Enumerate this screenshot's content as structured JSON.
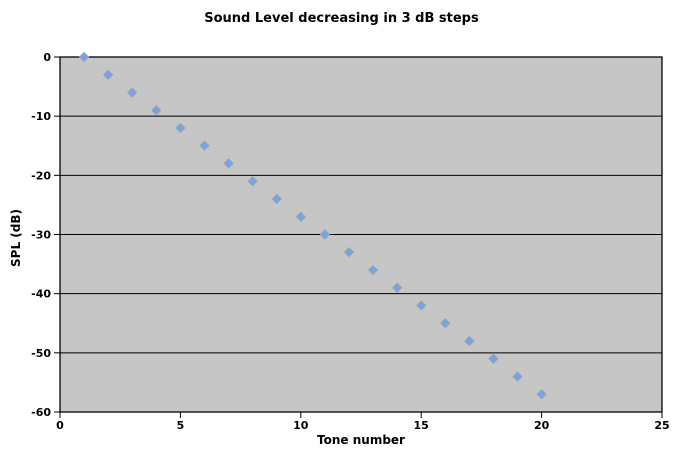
{
  "page": {
    "background_color": "#ffffff"
  },
  "chart_data": {
    "type": "scatter",
    "title": "Sound Level decreasing in 3 dB steps",
    "xlabel": "Tone number",
    "ylabel": "SPL (dB)",
    "series": [
      {
        "name": "SPL",
        "x": [
          1,
          2,
          3,
          4,
          5,
          6,
          7,
          8,
          9,
          10,
          11,
          12,
          13,
          14,
          15,
          16,
          17,
          18,
          19,
          20
        ],
        "y": [
          0,
          -3,
          -6,
          -9,
          -12,
          -15,
          -18,
          -21,
          -24,
          -27,
          -30,
          -33,
          -36,
          -39,
          -42,
          -45,
          -48,
          -51,
          -54,
          -57
        ]
      }
    ],
    "xlim": [
      0,
      25
    ],
    "ylim": [
      -60,
      0
    ],
    "xticks": [
      0,
      5,
      10,
      15,
      20,
      25
    ],
    "yticks": [
      0,
      -10,
      -20,
      -30,
      -40,
      -50,
      -60
    ],
    "grid": "horizontal",
    "legend": "none",
    "marker": {
      "shape": "diamond",
      "size": 9,
      "fill_color": "#74A3E8",
      "outline_color": "#9AA3AE"
    },
    "plot_background_color": "#C6C6C6",
    "axis_color": "#000000",
    "gridline_color": "#000000"
  }
}
